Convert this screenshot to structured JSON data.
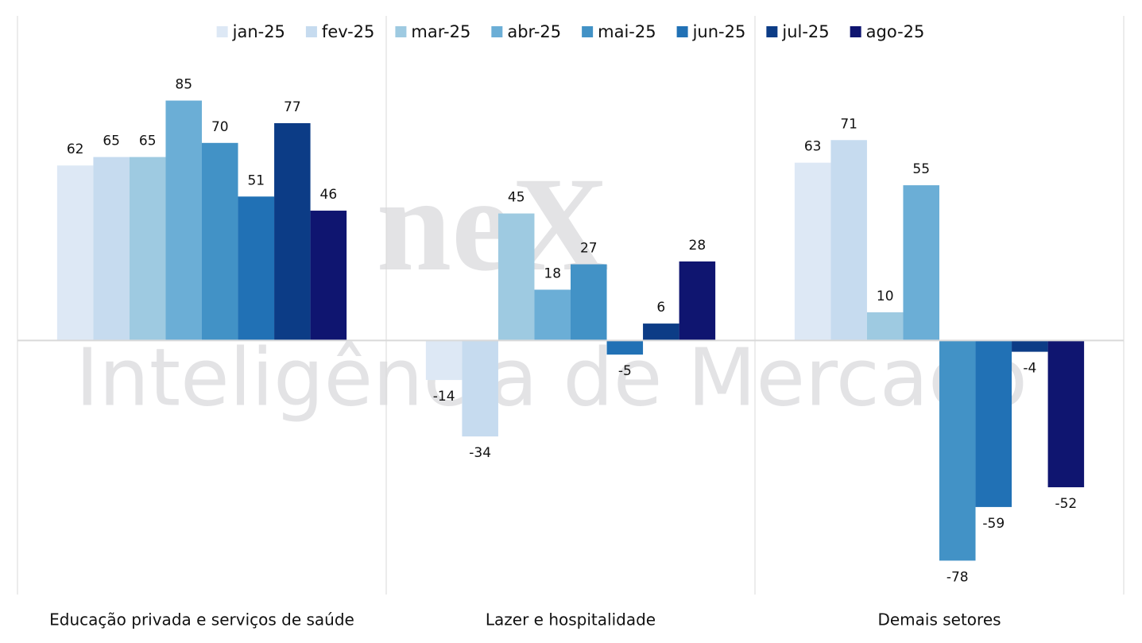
{
  "chart_data": {
    "type": "bar",
    "categories": [
      "Educação privada e serviços de saúde",
      "Lazer e hospitalidade",
      "Demais setores"
    ],
    "series": [
      {
        "name": "jan-25",
        "color": "#dde8f5",
        "values": [
          62,
          -14,
          63
        ]
      },
      {
        "name": "fev-25",
        "color": "#c6dbef",
        "values": [
          65,
          -34,
          71
        ]
      },
      {
        "name": "mar-25",
        "color": "#9ecae1",
        "values": [
          65,
          45,
          10
        ]
      },
      {
        "name": "abr-25",
        "color": "#6baed6",
        "values": [
          85,
          18,
          55
        ]
      },
      {
        "name": "mai-25",
        "color": "#4292c6",
        "values": [
          70,
          27,
          -78
        ]
      },
      {
        "name": "jun-25",
        "color": "#2171b5",
        "values": [
          51,
          -5,
          -59
        ]
      },
      {
        "name": "jul-25",
        "color": "#0c3c86",
        "values": [
          77,
          6,
          -4
        ]
      },
      {
        "name": "ago-25",
        "color": "#0f1570",
        "values": [
          46,
          28,
          -52
        ]
      }
    ],
    "ylim": [
      -90,
      115
    ],
    "legend": "top",
    "watermark": {
      "logo": "neX",
      "text": "Inteligência de Mercado"
    }
  }
}
